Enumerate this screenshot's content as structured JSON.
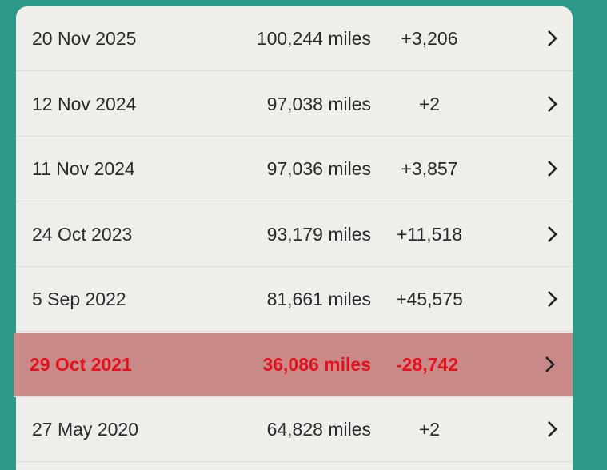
{
  "table": {
    "rows": [
      [
        "20 Nov 2025",
        "100,244 miles",
        "+3,206"
      ],
      [
        "12 Nov 2024",
        "97,038 miles",
        "+2"
      ],
      [
        "11 Nov 2024",
        "97,036 miles",
        "+3,857"
      ],
      [
        "24 Oct 2023",
        "93,179 miles",
        "+11,518"
      ],
      [
        "5 Sep 2022",
        "81,661 miles",
        "+45,575"
      ],
      [
        "29 Oct 2021",
        "36,086 miles",
        "-28,742"
      ],
      [
        "27 May 2020",
        "64,828 miles",
        "+2"
      ]
    ]
  }
}
